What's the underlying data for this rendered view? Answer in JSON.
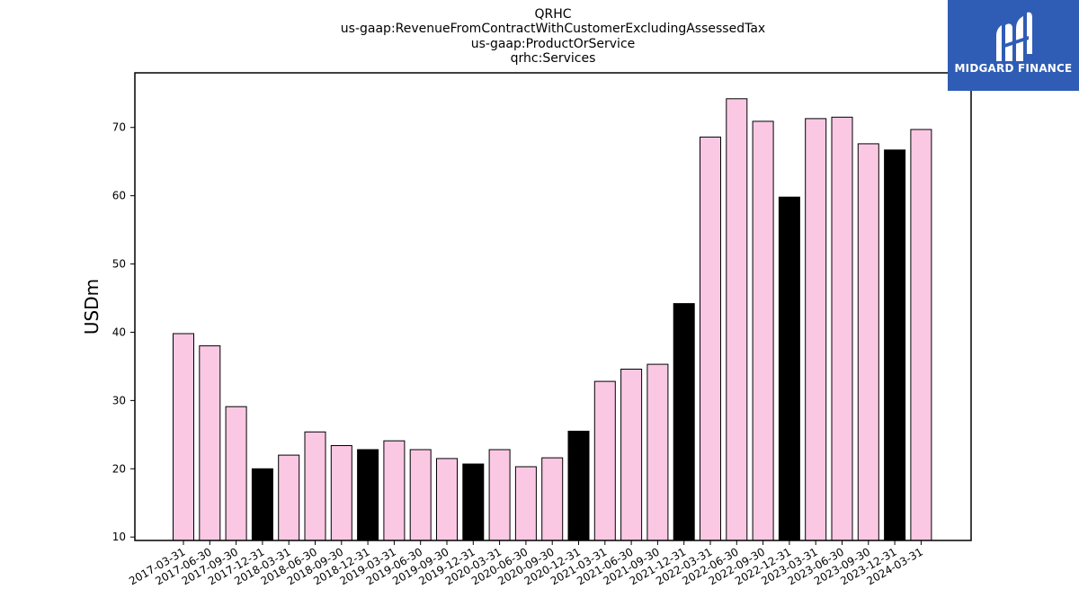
{
  "header": {
    "title_lines": [
      "QRHC",
      "us-gaap:RevenueFromContractWithCustomerExcludingAssessedTax",
      "us-gaap:ProductOrService",
      "qrhc:Services"
    ]
  },
  "logo": {
    "text": "MIDGARD FINANCE",
    "background": "#2f5db5",
    "icon": "midgard-logo-icon"
  },
  "chart_data": {
    "type": "bar",
    "ylabel": "USDm",
    "xlabel": "",
    "ylim": [
      9.5,
      78
    ],
    "yticks": [
      10,
      20,
      30,
      40,
      50,
      60,
      70
    ],
    "legend": "none",
    "grid": false,
    "colors": {
      "quarter": "#fbc8e4",
      "year_end": "#000000",
      "edge": "#000000"
    },
    "categories": [
      "2017-03-31",
      "2017-06-30",
      "2017-09-30",
      "2017-12-31",
      "2018-03-31",
      "2018-06-30",
      "2018-09-30",
      "2018-12-31",
      "2019-03-31",
      "2019-06-30",
      "2019-09-30",
      "2019-12-31",
      "2020-03-31",
      "2020-06-30",
      "2020-09-30",
      "2020-12-31",
      "2021-03-31",
      "2021-06-30",
      "2021-09-30",
      "2021-12-31",
      "2022-03-31",
      "2022-06-30",
      "2022-09-30",
      "2022-12-31",
      "2023-03-31",
      "2023-06-30",
      "2023-09-30",
      "2023-12-31",
      "2024-03-31"
    ],
    "values": [
      39.8,
      38.0,
      29.1,
      20.0,
      22.0,
      25.4,
      23.4,
      22.8,
      24.1,
      22.8,
      21.5,
      20.7,
      22.8,
      20.3,
      21.6,
      25.5,
      32.8,
      34.6,
      35.3,
      44.2,
      68.6,
      74.2,
      70.9,
      59.8,
      71.3,
      71.5,
      67.6,
      66.7,
      69.7
    ],
    "year_end_flags": [
      false,
      false,
      false,
      true,
      false,
      false,
      false,
      true,
      false,
      false,
      false,
      true,
      false,
      false,
      false,
      true,
      false,
      false,
      false,
      true,
      false,
      false,
      false,
      true,
      false,
      false,
      false,
      true,
      false
    ]
  }
}
